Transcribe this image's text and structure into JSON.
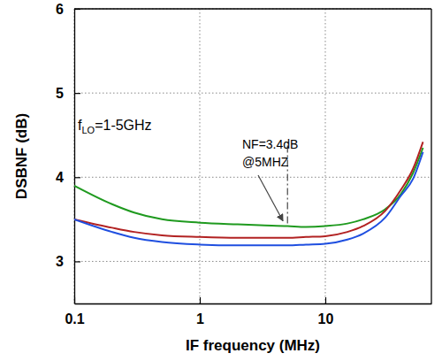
{
  "chart_data": {
    "type": "line",
    "x_label": "IF frequency (MHz)",
    "y_label": "DSBNF (dB)",
    "x": [
      0.1,
      0.2,
      0.3,
      0.5,
      1,
      2,
      3,
      5,
      7,
      10,
      15,
      20,
      30,
      40,
      50,
      60
    ],
    "series": [
      {
        "color": "#1f9a1f",
        "values": [
          3.9,
          3.68,
          3.58,
          3.5,
          3.46,
          3.44,
          3.43,
          3.42,
          3.41,
          3.42,
          3.45,
          3.5,
          3.62,
          3.8,
          4.05,
          4.35
        ]
      },
      {
        "color": "#b22222",
        "values": [
          3.5,
          3.4,
          3.35,
          3.31,
          3.29,
          3.28,
          3.28,
          3.28,
          3.29,
          3.3,
          3.35,
          3.42,
          3.6,
          3.85,
          4.1,
          4.42
        ]
      },
      {
        "color": "#1f4fe0",
        "values": [
          3.5,
          3.35,
          3.28,
          3.23,
          3.2,
          3.19,
          3.19,
          3.19,
          3.2,
          3.21,
          3.26,
          3.33,
          3.52,
          3.78,
          3.98,
          4.3
        ]
      }
    ],
    "xlim": [
      0.1,
      70
    ],
    "ylim": [
      2.5,
      6
    ],
    "xticks": [
      0.1,
      1,
      10
    ],
    "yticks": [
      3,
      4,
      5,
      6
    ],
    "log": "x",
    "grid": true,
    "annotations": [
      {
        "text": [
          "f",
          "LO",
          "=1-5GHz"
        ]
      },
      {
        "text": [
          "NF=3.4dB",
          "@5MHZ"
        ],
        "arrow_to": [
          4.6,
          3.48
        ]
      }
    ],
    "vline": {
      "x": 5,
      "y": [
        3.45,
        4.42
      ]
    }
  }
}
